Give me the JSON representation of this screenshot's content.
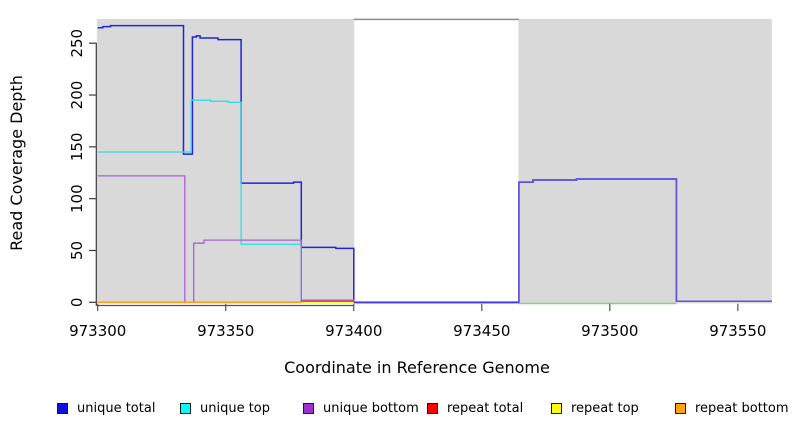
{
  "chart_data": {
    "type": "line",
    "title": "",
    "xlabel": "Coordinate in Reference Genome",
    "ylabel": "Read Coverage Depth",
    "xlim": [
      973299.7,
      973563.3
    ],
    "ylim": [
      0,
      273
    ],
    "x_ticks": [
      973300,
      973350,
      973400,
      973450,
      973500,
      973550
    ],
    "y_ticks": [
      0,
      50,
      100,
      150,
      200,
      250
    ],
    "grid": false,
    "legend_position": "bottom",
    "shaded_regions": [
      {
        "name": "left-gray-region",
        "x1": 973299.7,
        "x2": 973400.2,
        "color": "#d9d9d9"
      },
      {
        "name": "right-gray-region",
        "x1": 973464.3,
        "x2": 973563.3,
        "color": "#d9d9d9"
      }
    ],
    "series": [
      {
        "name": "unique total",
        "color": "#2222e0",
        "legend_color": "#1111dd",
        "width": 1.5,
        "steps": [
          [
            973300,
            265
          ],
          [
            973302,
            266
          ],
          [
            973305,
            267
          ],
          [
            973333.5,
            143
          ],
          [
            973337,
            256
          ],
          [
            973338.5,
            257
          ],
          [
            973340,
            255
          ],
          [
            973347,
            253.5
          ],
          [
            973356,
            115
          ],
          [
            973376.5,
            116
          ],
          [
            973379.5,
            53
          ],
          [
            973393,
            52
          ],
          [
            973400,
            0
          ],
          [
            973464.5,
            116
          ],
          [
            973470,
            118
          ],
          [
            973487,
            119
          ],
          [
            973526,
            1
          ],
          [
            973563.3,
            1
          ]
        ]
      },
      {
        "name": "unique top",
        "color": "#30dfe8",
        "legend_color": "#00ffff",
        "width": 1.3,
        "steps": [
          [
            973300,
            145
          ],
          [
            973336.5,
            195
          ],
          [
            973344,
            194
          ],
          [
            973351,
            193
          ],
          [
            973356,
            56
          ],
          [
            973379.5,
            1
          ],
          [
            973400,
            1
          ]
        ]
      },
      {
        "name": "unique bottom",
        "color": "#ab5fd6",
        "legend_color": "#9a30cf",
        "width": 1.3,
        "steps": [
          [
            973300,
            122
          ],
          [
            973334,
            0
          ],
          [
            973337.5,
            57
          ],
          [
            973341.5,
            60
          ],
          [
            973379.5,
            2
          ],
          [
            973400,
            0
          ]
        ]
      },
      {
        "name": "repeat total",
        "color": "#ee1111",
        "legend_color": "#ff0000",
        "width": 1.2,
        "steps": [
          [
            973300,
            0
          ],
          [
            973379.5,
            1
          ],
          [
            973400,
            0
          ]
        ]
      },
      {
        "name": "repeat top",
        "color": "#ffff00",
        "legend_color": "#ffff00",
        "width": 1.2,
        "steps": [
          [
            973300,
            0
          ],
          [
            973400,
            0
          ]
        ]
      },
      {
        "name": "repeat bottom",
        "color": "#ff9d17",
        "legend_color": "#ffa500",
        "width": 1.5,
        "steps": [
          [
            973300,
            0
          ],
          [
            973379.5,
            0
          ]
        ]
      }
    ],
    "overlay_lines": [
      {
        "name": "unique-total-and-bottom-overlap-plateau",
        "color": "#6353dc",
        "width": 1.5,
        "dy": 0,
        "steps": [
          [
            973464.5,
            0
          ],
          [
            973464.5,
            116
          ],
          [
            973470,
            118
          ],
          [
            973487,
            119
          ],
          [
            973526,
            119
          ],
          [
            973526,
            1
          ],
          [
            973563.3,
            1
          ]
        ]
      },
      {
        "name": "unique-top-and-repeat-top-overlap-baseline",
        "color": "#8bcc8b",
        "width": 1.4,
        "dy": 1.2,
        "steps": [
          [
            973464.5,
            0
          ],
          [
            973526,
            0
          ]
        ]
      },
      {
        "name": "unique-bottom-gap-baseline",
        "color": "#b684e4",
        "width": 1.0,
        "dy": 1.0,
        "steps": [
          [
            973400,
            0
          ],
          [
            973464.5,
            0
          ]
        ]
      },
      {
        "name": "unique-total-and-bottom-overlap-magenta",
        "color": "#d23c8c",
        "width": 1.2,
        "dy": 0,
        "steps": [
          [
            973379.5,
            1.1
          ],
          [
            973400,
            1.1
          ]
        ]
      },
      {
        "name": "gap-top-line",
        "color": "#8c8c8c",
        "width": 1.5,
        "dy": 0,
        "steps": [
          [
            973400,
            273
          ],
          [
            973464.5,
            273
          ]
        ]
      },
      {
        "name": "repeat-region-underline",
        "color": "#4f4f4f",
        "width": 1.2,
        "dy": 0,
        "steps": [
          [
            973299.7,
            -3.1
          ],
          [
            973400,
            -3.1
          ]
        ]
      }
    ]
  },
  "legend": {
    "items": [
      {
        "label": "unique total",
        "color": "#1111dd"
      },
      {
        "label": "unique top",
        "color": "#00ffff"
      },
      {
        "label": "unique bottom",
        "color": "#9a30cf"
      },
      {
        "label": "repeat total",
        "color": "#ff0000"
      },
      {
        "label": "repeat top",
        "color": "#ffff00"
      },
      {
        "label": "repeat bottom",
        "color": "#ffa500"
      }
    ]
  }
}
